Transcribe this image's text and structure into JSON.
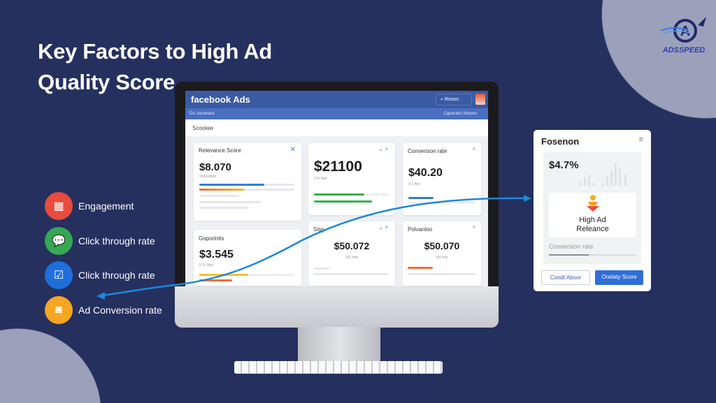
{
  "title": [
    "Key Factors to High Ad",
    "Quality Score"
  ],
  "logo": {
    "text": "ADSSPEED"
  },
  "colors": {
    "background": "#25305f",
    "accent": "#1e88d8",
    "header": "#3b5aa4"
  },
  "factors": [
    {
      "label": "Engagement",
      "icon": "calendar-icon",
      "color": "#e84c3d"
    },
    {
      "label": "Click through rate",
      "icon": "chat-icon",
      "color": "#34a853"
    },
    {
      "label": "Click through rate",
      "icon": "checkmark-icon",
      "color": "#1e6fdc"
    },
    {
      "label": "Ad Conversion rate",
      "icon": "camera-icon",
      "color": "#f5a623"
    }
  ],
  "screen": {
    "brand": "facebook Ads",
    "search": "Roxon",
    "subbar_left": "Do Jocowase",
    "subbar_right": "Cgeerabs tiheoen",
    "toolbar": "Scoolaw",
    "cards": [
      {
        "title": "Relevance Score",
        "value": "$8.070",
        "sub": "15d0orbdd"
      },
      {
        "title": "",
        "value": "$21100",
        "sub": "2 5I ftbd"
      },
      {
        "title": "Conversion rate",
        "value": "$40.20",
        "sub": "3 0 ftbd"
      },
      {
        "title": "Goporlntis",
        "value": "$3.545",
        "sub": "5 10 ftbd"
      },
      {
        "title": "Sisg",
        "value": "$50.072",
        "sub": "200 frde"
      },
      {
        "title": "Polvanloo",
        "value": "$50.070",
        "sub": "200 frde"
      }
    ]
  },
  "panel": {
    "title": "Fosenon",
    "value": "$4.7%",
    "badge": "High Ad Releance",
    "metric": "Conversion rate",
    "metric_progress": 0.45,
    "btn_secondary": "Condt Aboor",
    "btn_primary": "Ooslaty Score"
  }
}
